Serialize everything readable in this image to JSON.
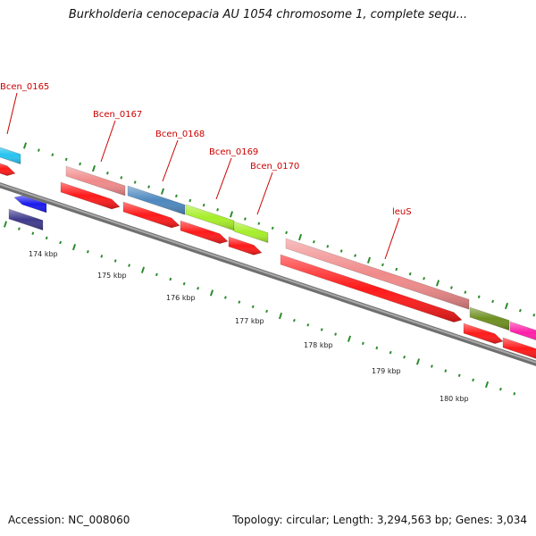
{
  "title": "Burkholderia cenocepacia AU 1054 chromosome 1, complete sequ...",
  "footer": {
    "accession": "Accession: NC_008060",
    "stats": "Topology: circular; Length: 3,294,563 bp; Genes: 3,034"
  },
  "colors": {
    "backbone": "#8a8a8a",
    "cds": "#ff1a1a",
    "label": "#cc0000",
    "tick": "#2e8b2e"
  },
  "gene_labels": [
    "Bcen_0165",
    "Bcen_0167",
    "Bcen_0168",
    "Bcen_0169",
    "Bcen_0170",
    "leuS"
  ],
  "kbp_labels": [
    "174 kbp",
    "175 kbp",
    "176 kbp",
    "177 kbp",
    "178 kbp",
    "179 kbp",
    "180 kbp"
  ]
}
